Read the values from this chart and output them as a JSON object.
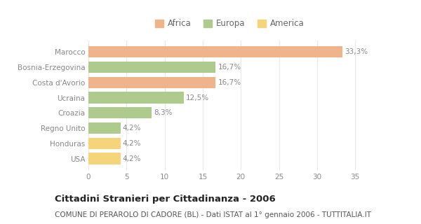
{
  "categories": [
    "Marocco",
    "Bosnia-Erzegovina",
    "Costa d'Avorio",
    "Ucraina",
    "Croazia",
    "Regno Unito",
    "Honduras",
    "USA"
  ],
  "values": [
    33.3,
    16.7,
    16.7,
    12.5,
    8.3,
    4.2,
    4.2,
    4.2
  ],
  "labels": [
    "33,3%",
    "16,7%",
    "16,7%",
    "12,5%",
    "8,3%",
    "4,2%",
    "4,2%",
    "4,2%"
  ],
  "colors": [
    "#F0B48C",
    "#AECA8C",
    "#F0B48C",
    "#AECA8C",
    "#AECA8C",
    "#AECA8C",
    "#F5D47A",
    "#F5D47A"
  ],
  "legend_labels": [
    "Africa",
    "Europa",
    "America"
  ],
  "legend_colors": [
    "#F0B48C",
    "#AECA8C",
    "#F5D47A"
  ],
  "title": "Cittadini Stranieri per Cittadinanza - 2006",
  "subtitle": "COMUNE DI PERAROLO DI CADORE (BL) - Dati ISTAT al 1° gennaio 2006 - TUTTITALIA.IT",
  "xlim": [
    0,
    37
  ],
  "xticks": [
    0,
    5,
    10,
    15,
    20,
    25,
    30,
    35
  ],
  "bg_color": "#ffffff",
  "plot_bg_color": "#ffffff",
  "grid_color": "#e8e8e8",
  "bar_height": 0.75,
  "label_fontsize": 7.5,
  "title_fontsize": 9.5,
  "subtitle_fontsize": 7.5,
  "tick_fontsize": 7.5,
  "legend_fontsize": 8.5,
  "ytick_color": "#888888",
  "xtick_color": "#888888",
  "label_color": "#888888",
  "title_color": "#222222",
  "subtitle_color": "#555555"
}
